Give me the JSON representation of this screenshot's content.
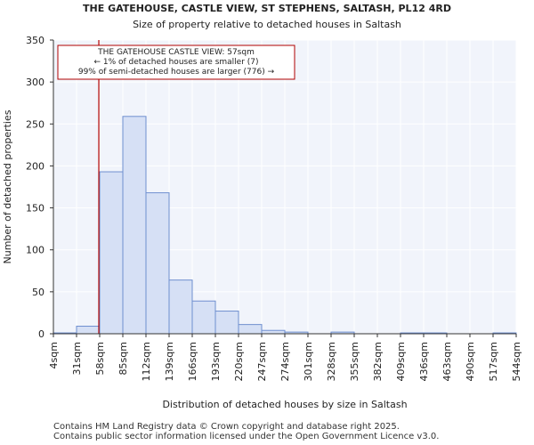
{
  "chart_data": {
    "type": "bar",
    "title": "THE GATEHOUSE, CASTLE VIEW, ST STEPHENS, SALTASH, PL12 4RD",
    "subtitle": "Size of property relative to detached houses in Saltash",
    "xlabel": "Distribution of detached houses by size in Saltash",
    "ylabel": "Number of detached properties",
    "ylim": [
      0,
      350
    ],
    "yticks": [
      0,
      50,
      100,
      150,
      200,
      250,
      300,
      350
    ],
    "tick_labels": [
      "4sqm",
      "31sqm",
      "58sqm",
      "85sqm",
      "112sqm",
      "139sqm",
      "166sqm",
      "193sqm",
      "220sqm",
      "247sqm",
      "274sqm",
      "301sqm",
      "328sqm",
      "355sqm",
      "382sqm",
      "409sqm",
      "436sqm",
      "463sqm",
      "490sqm",
      "517sqm",
      "544sqm"
    ],
    "values": [
      1,
      9,
      193,
      259,
      168,
      64,
      39,
      27,
      11,
      4,
      2,
      0,
      2,
      0,
      0,
      1,
      1,
      0,
      0,
      1
    ],
    "bar_fill": "#d6e0f5",
    "bar_stroke": "#6f8fcf",
    "plot_background": "#f1f4fb",
    "grid": true,
    "marker": {
      "value_sqm": 57,
      "color": "#b00000"
    },
    "annotation": {
      "lines": [
        "THE GATEHOUSE CASTLE VIEW: 57sqm",
        "← 1% of detached houses are smaller (7)",
        "99% of semi-detached houses are larger (776) →"
      ],
      "border_color": "#b00000"
    }
  },
  "footer": {
    "line1": "Contains HM Land Registry data © Crown copyright and database right 2025.",
    "line2": "Contains public sector information licensed under the Open Government Licence v3.0."
  }
}
